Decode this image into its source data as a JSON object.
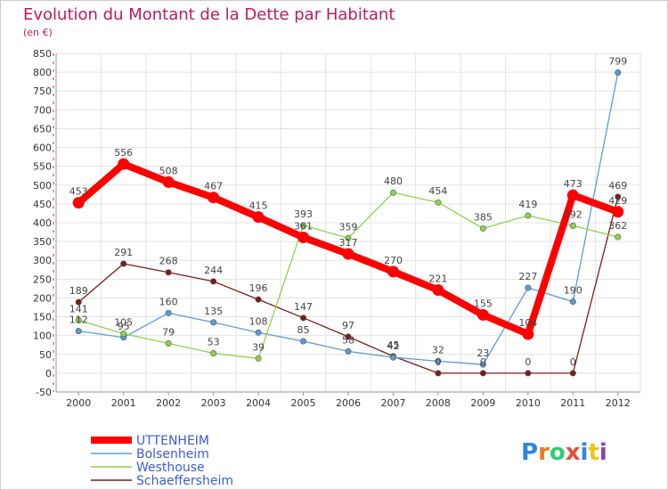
{
  "chart_data": {
    "type": "line",
    "title": "Evolution du Montant de la Dette par Habitant",
    "subtitle": "(en €)",
    "xlabel": "",
    "ylabel": "",
    "categories": [
      "2000",
      "2001",
      "2002",
      "2003",
      "2004",
      "2005",
      "2006",
      "2007",
      "2008",
      "2009",
      "2010",
      "2011",
      "2012"
    ],
    "ylim": [
      -50,
      850
    ],
    "yticks": [
      -50,
      0,
      50,
      100,
      150,
      200,
      250,
      300,
      350,
      400,
      450,
      500,
      550,
      600,
      650,
      700,
      750,
      800,
      850
    ],
    "grid": true,
    "legend_position": "bottom-left",
    "series": [
      {
        "name": "UTTENHEIM",
        "color": "#ff0000",
        "values": [
          453,
          556,
          508,
          467,
          415,
          361,
          317,
          270,
          221,
          155,
          104,
          473,
          429
        ]
      },
      {
        "name": "Bolsenheim",
        "color": "#5b9bd5",
        "values": [
          112,
          95,
          160,
          135,
          108,
          85,
          58,
          42,
          32,
          23,
          227,
          190,
          799
        ]
      },
      {
        "name": "Westhouse",
        "color": "#8fd14f",
        "values": [
          141,
          105,
          79,
          53,
          39,
          393,
          359,
          480,
          454,
          385,
          419,
          392,
          362
        ]
      },
      {
        "name": "Schaeffersheim",
        "color": "#7b1c1c",
        "values": [
          189,
          291,
          268,
          244,
          196,
          147,
          97,
          45,
          0,
          0,
          0,
          0,
          469
        ]
      }
    ]
  },
  "logo": {
    "text": "Proxiti",
    "letters": [
      "P",
      "r",
      "o",
      "x",
      "i",
      "t",
      "i"
    ],
    "colors": [
      "#2e86de",
      "#e67e22",
      "#2ecc71",
      "#e74c3c",
      "#2e86de",
      "#f1c40f",
      "#8e44ad"
    ]
  }
}
